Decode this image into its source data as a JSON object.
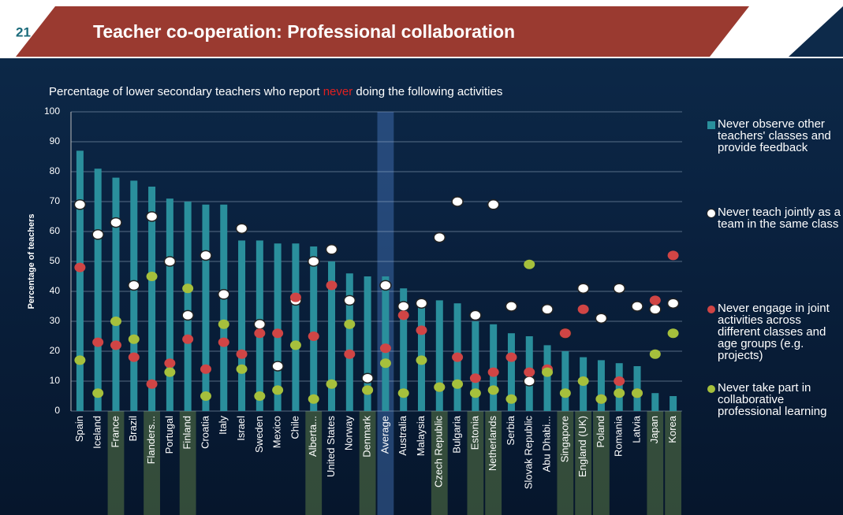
{
  "slide_number": "21",
  "slide_title": "Teacher co-operation: Professional collaboration",
  "chart_data": {
    "type": "bar_dot",
    "title_parts": [
      "Percentage of lower secondary teachers who report ",
      "never",
      " doing the following activities"
    ],
    "y_label": "Percentage of teachers",
    "categories": [
      "Spain",
      "Iceland",
      "France",
      "Brazil",
      "Flanders...",
      "Portugal",
      "Finland",
      "Croatia",
      "Italy",
      "Israel",
      "Sweden",
      "Mexico",
      "Chile",
      "Alberta...",
      "United States",
      "Norway",
      "Denmark",
      "Average",
      "Australia",
      "Malaysia",
      "Czech Republic",
      "Bulgaria",
      "Estonia",
      "Netherlands",
      "Serbia",
      "Slovak Republic",
      "Abu Dhabi...",
      "Singapore",
      "England (UK)",
      "Poland",
      "Romania",
      "Latvia",
      "Japan",
      "Korea"
    ],
    "highlighted": [
      2,
      4,
      6,
      13,
      16,
      20,
      22,
      23,
      27,
      28,
      29,
      32,
      33
    ],
    "average_index": 17,
    "ylim": [
      0,
      100
    ],
    "yticks": [
      0,
      10,
      20,
      30,
      40,
      50,
      60,
      70,
      80,
      90,
      100
    ],
    "grid": true,
    "series": [
      {
        "name": "Never observe other teachers' classes and provide feedback",
        "kind": "bar",
        "color": "#2a8f9c",
        "values": [
          87,
          81,
          78,
          77,
          75,
          71,
          70,
          69,
          69,
          57,
          57,
          56,
          56,
          55,
          50,
          46,
          45,
          45,
          41,
          37,
          37,
          36,
          30,
          29,
          26,
          25,
          22,
          20,
          18,
          17,
          16,
          15,
          6,
          5
        ]
      },
      {
        "name": "Never teach jointly as a team in the same class",
        "kind": "dot",
        "color": "#ffffff",
        "values": [
          69,
          59,
          63,
          42,
          65,
          50,
          32,
          52,
          39,
          61,
          29,
          15,
          37,
          50,
          54,
          37,
          11,
          42,
          35,
          36,
          58,
          70,
          32,
          69,
          35,
          10,
          34,
          26,
          41,
          31,
          41,
          35,
          34,
          36
        ]
      },
      {
        "name": "Never engage in joint activities across different classes and age groups (e.g. projects)",
        "kind": "dot",
        "color": "#d04545",
        "values": [
          48,
          23,
          22,
          18,
          9,
          16,
          24,
          14,
          23,
          19,
          26,
          26,
          38,
          25,
          42,
          19,
          7,
          21,
          32,
          27,
          8,
          18,
          11,
          13,
          18,
          13,
          14,
          26,
          34,
          4,
          10,
          6,
          37,
          52
        ]
      },
      {
        "name": "Never take part in collaborative professional learning",
        "kind": "dot",
        "color": "#a6c03c",
        "values": [
          17,
          6,
          30,
          24,
          45,
          13,
          41,
          5,
          29,
          14,
          5,
          7,
          22,
          4,
          9,
          29,
          7,
          16,
          6,
          17,
          8,
          9,
          6,
          7,
          4,
          49,
          13,
          6,
          10,
          4,
          6,
          6,
          19,
          26
        ]
      }
    ]
  }
}
